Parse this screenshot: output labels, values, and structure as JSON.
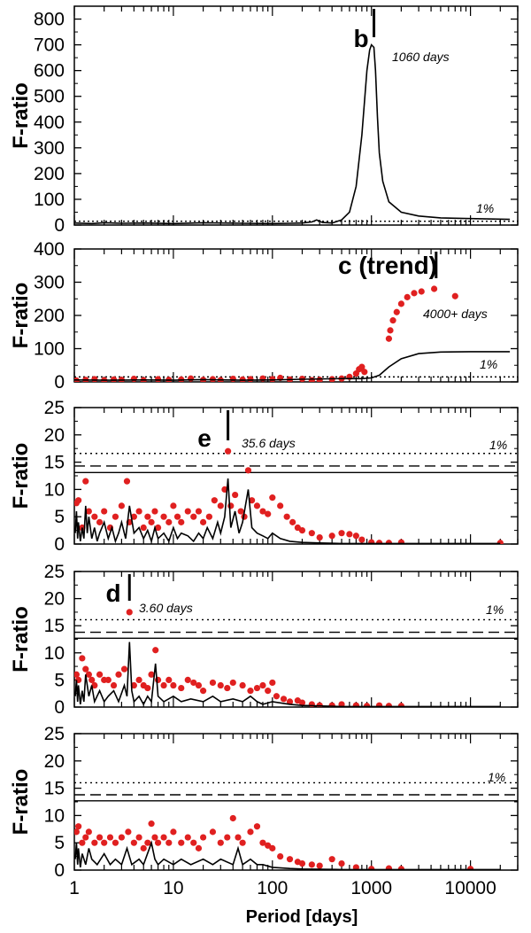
{
  "chart_data": [
    {
      "type": "line",
      "ylabel": "F-ratio",
      "xscale": "log",
      "xlim": [
        1,
        30000
      ],
      "ylim": [
        0,
        850
      ],
      "yticks": [
        "0",
        "100",
        "200",
        "300",
        "400",
        "500",
        "600",
        "700",
        "800"
      ],
      "yticks_values": [
        0,
        100,
        200,
        300,
        400,
        500,
        600,
        700,
        800
      ],
      "planet_label": "b",
      "peak": {
        "period": 1060,
        "label": "1060 days"
      },
      "significance_label": "1%",
      "thresholds": {
        "one_percent": 15
      },
      "series": [
        {
          "color": "#000000",
          "style": "line",
          "x": [
            1,
            1.5,
            2,
            3,
            5,
            10,
            20,
            50,
            100,
            150,
            200,
            250,
            280,
            320,
            400,
            500,
            600,
            700,
            800,
            900,
            960,
            1000,
            1030,
            1060,
            1100,
            1150,
            1200,
            1300,
            1500,
            2000,
            3000,
            5000,
            10000,
            25000
          ],
          "y": [
            8,
            6,
            9,
            7,
            8,
            6,
            9,
            7,
            6,
            7,
            8,
            12,
            20,
            10,
            8,
            20,
            50,
            150,
            350,
            600,
            680,
            700,
            695,
            690,
            600,
            420,
            280,
            170,
            90,
            50,
            35,
            28,
            25,
            22
          ]
        }
      ]
    },
    {
      "type": "line",
      "ylabel": "F-ratio",
      "xscale": "log",
      "xlim": [
        1,
        30000
      ],
      "ylim": [
        0,
        400
      ],
      "yticks": [
        "0",
        "100",
        "200",
        "300",
        "400"
      ],
      "yticks_values": [
        0,
        100,
        200,
        300,
        400
      ],
      "planet_label": "c (trend)",
      "peak": {
        "period": 4500,
        "label": "4000+ days"
      },
      "significance_label": "1%",
      "thresholds": {
        "one_percent": 15
      },
      "series": [
        {
          "color": "#000000",
          "style": "line",
          "x": [
            1,
            2,
            5,
            10,
            20,
            50,
            100,
            200,
            500,
            800,
            1000,
            1200,
            1500,
            2000,
            3000,
            5000,
            10000,
            25000
          ],
          "y": [
            6,
            5,
            6,
            5,
            7,
            5,
            6,
            8,
            10,
            10,
            12,
            20,
            45,
            70,
            85,
            90,
            91,
            91
          ]
        },
        {
          "color": "#e02020",
          "style": "points",
          "x": [
            1.05,
            1.3,
            1.6,
            2,
            2.5,
            3,
            4,
            5,
            7,
            9,
            12,
            15,
            20,
            25,
            30,
            40,
            50,
            60,
            80,
            100,
            120,
            150,
            200,
            250,
            300,
            400,
            500,
            600,
            700,
            750,
            800,
            850,
            1500,
            1550,
            1650,
            1800,
            2000,
            2300,
            2700,
            3200,
            4300,
            7000
          ],
          "y": [
            4,
            6,
            8,
            5,
            7,
            6,
            9,
            5,
            8,
            6,
            7,
            10,
            6,
            8,
            5,
            9,
            7,
            8,
            10,
            8,
            12,
            7,
            9,
            5,
            6,
            8,
            10,
            15,
            25,
            38,
            45,
            30,
            130,
            155,
            185,
            210,
            235,
            255,
            267,
            272,
            280,
            258
          ]
        }
      ]
    },
    {
      "type": "line",
      "ylabel": "F-ratio",
      "xscale": "log",
      "xlim": [
        1,
        30000
      ],
      "ylim": [
        0,
        25
      ],
      "yticks": [
        "0",
        "5",
        "10",
        "15",
        "20",
        "25"
      ],
      "yticks_values": [
        0,
        5,
        10,
        15,
        20,
        25
      ],
      "planet_label": "e",
      "peak": {
        "period": 35.6,
        "label": "35.6 days"
      },
      "significance_label": "1%",
      "thresholds": {
        "dotted": 16.6,
        "dashed": 14.3,
        "solid": 13.1
      },
      "series": [
        {
          "color": "#e02020",
          "style": "points",
          "x": [
            1.05,
            1.1,
            1.2,
            1.3,
            1.4,
            1.6,
            1.8,
            2,
            2.3,
            2.6,
            3,
            3.4,
            3.6,
            4,
            4.5,
            5,
            5.5,
            6,
            6.5,
            7,
            8,
            9,
            10,
            11,
            12,
            14,
            16,
            18,
            20,
            23,
            26,
            30,
            33,
            35.6,
            38,
            42,
            48,
            52,
            57,
            62,
            70,
            80,
            90,
            100,
            120,
            140,
            160,
            180,
            200,
            250,
            300,
            400,
            500,
            600,
            700,
            800,
            1000,
            1200,
            1500,
            2000,
            20000
          ],
          "y": [
            7.5,
            8,
            3,
            11.5,
            6,
            5,
            4,
            6,
            3,
            5,
            7,
            11.5,
            4,
            5,
            6,
            3,
            5,
            4,
            6,
            3,
            5,
            4,
            7,
            5,
            4,
            6,
            5,
            6,
            4,
            5,
            8,
            7,
            10,
            17,
            7,
            9,
            6,
            5,
            13.5,
            8,
            7,
            6,
            5.5,
            8.5,
            7,
            5,
            4,
            3,
            2.5,
            2,
            1.2,
            1.5,
            2,
            1.8,
            1.5,
            0.8,
            0.3,
            0.2,
            0.2,
            0.3,
            0.2
          ]
        },
        {
          "color": "#000000",
          "style": "line",
          "x": [
            1.02,
            1.05,
            1.08,
            1.1,
            1.15,
            1.2,
            1.25,
            1.3,
            1.35,
            1.4,
            1.5,
            1.6,
            1.7,
            1.8,
            2,
            2.2,
            2.4,
            2.6,
            2.8,
            3,
            3.3,
            3.6,
            4,
            4.5,
            5,
            5.5,
            6,
            6.5,
            7,
            8,
            9,
            10,
            11,
            12,
            14,
            16,
            18,
            20,
            22,
            25,
            28,
            30,
            33,
            35.6,
            38,
            42,
            46,
            50,
            57,
            62,
            70,
            80,
            90,
            100,
            120,
            150,
            200,
            300,
            500,
            1000,
            2000,
            5000,
            20000
          ],
          "y": [
            2,
            6,
            1,
            4,
            0.5,
            3,
            1,
            7,
            2,
            5,
            1,
            3,
            0.5,
            2,
            4,
            1,
            3,
            0.5,
            2,
            4,
            1,
            7,
            2,
            3,
            1,
            2.5,
            0.5,
            3,
            1,
            2,
            0.5,
            3,
            1,
            2,
            1.5,
            0.5,
            2,
            1,
            3,
            1,
            4,
            2,
            5,
            12,
            3,
            6,
            2,
            4,
            10,
            3,
            2,
            1.5,
            1,
            2,
            1,
            0.5,
            0.3,
            0.2,
            0.1,
            0.1,
            0.1,
            0.1,
            0.1
          ]
        }
      ]
    },
    {
      "type": "line",
      "ylabel": "F-ratio",
      "xscale": "log",
      "xlim": [
        1,
        30000
      ],
      "ylim": [
        0,
        25
      ],
      "yticks": [
        "0",
        "5",
        "10",
        "15",
        "20",
        "25"
      ],
      "yticks_values": [
        0,
        5,
        10,
        15,
        20,
        25
      ],
      "planet_label": "d",
      "peak": {
        "period": 3.6,
        "label": "3.60 days"
      },
      "significance_label": "1%",
      "thresholds": {
        "dotted": 16.1,
        "dashed": 13.8,
        "solid": 12.7
      },
      "series": [
        {
          "color": "#e02020",
          "style": "points",
          "x": [
            1.05,
            1.1,
            1.2,
            1.3,
            1.4,
            1.5,
            1.6,
            1.8,
            2,
            2.2,
            2.5,
            2.8,
            3.2,
            3.6,
            4,
            4.5,
            5,
            5.5,
            6,
            6.6,
            7,
            8,
            9,
            10,
            12,
            14,
            16,
            18,
            20,
            25,
            30,
            35,
            40,
            50,
            60,
            70,
            80,
            90,
            100,
            110,
            130,
            150,
            180,
            200,
            250,
            300,
            400,
            500,
            700,
            900,
            1200,
            1500,
            2000
          ],
          "y": [
            6,
            5,
            9,
            7,
            6,
            5,
            4,
            6,
            5,
            5,
            4,
            6,
            7,
            17.5,
            4,
            5,
            4,
            3.5,
            6,
            10.5,
            5,
            4,
            5,
            4,
            3.5,
            5,
            4.5,
            4,
            3,
            4.5,
            4,
            3.5,
            4.5,
            4,
            3,
            3.5,
            4,
            3,
            4.5,
            2,
            1.5,
            1,
            1.2,
            0.8,
            0.5,
            0.3,
            0.3,
            0.5,
            0.3,
            0.2,
            0.3,
            0.2,
            0.2
          ]
        },
        {
          "color": "#000000",
          "style": "line",
          "x": [
            1.02,
            1.05,
            1.08,
            1.1,
            1.15,
            1.2,
            1.25,
            1.3,
            1.4,
            1.5,
            1.6,
            1.8,
            2,
            2.2,
            2.5,
            2.8,
            3.2,
            3.4,
            3.6,
            3.8,
            4,
            4.5,
            5,
            5.5,
            6,
            6.6,
            7,
            8,
            10,
            12,
            15,
            20,
            25,
            30,
            40,
            50,
            60,
            70,
            80,
            100,
            150,
            200,
            500,
            1000,
            5000,
            20000
          ],
          "y": [
            2,
            5,
            1,
            4,
            0.5,
            3,
            1,
            6,
            2,
            4,
            1,
            3,
            1,
            2,
            3,
            1,
            4,
            2,
            12,
            3,
            1,
            2,
            0.5,
            2,
            1,
            8,
            2,
            1,
            2,
            1,
            1.5,
            1,
            2,
            1,
            1.5,
            1,
            2,
            1,
            0.5,
            1,
            0.5,
            0.3,
            0.1,
            0.1,
            0.1,
            0.1
          ]
        }
      ]
    },
    {
      "type": "line",
      "ylabel": "F-ratio",
      "xlabel": "Period [days]",
      "xscale": "log",
      "xlim": [
        1,
        30000
      ],
      "ylim": [
        0,
        25
      ],
      "yticks": [
        "0",
        "5",
        "10",
        "15",
        "20",
        "25"
      ],
      "yticks_values": [
        0,
        5,
        10,
        15,
        20,
        25
      ],
      "xticks": [
        "1",
        "10",
        "100",
        "1000",
        "10000"
      ],
      "xticks_values": [
        1,
        10,
        100,
        1000,
        10000
      ],
      "significance_label": "1%",
      "thresholds": {
        "dotted": 16.0,
        "dashed": 13.8,
        "solid": 12.7
      },
      "series": [
        {
          "color": "#e02020",
          "style": "points",
          "x": [
            1.05,
            1.1,
            1.2,
            1.3,
            1.4,
            1.6,
            1.8,
            2,
            2.3,
            2.6,
            3,
            3.5,
            4,
            4.5,
            5,
            5.5,
            6,
            6.5,
            7,
            8,
            9,
            10,
            12,
            14,
            16,
            18,
            20,
            25,
            30,
            35,
            40,
            45,
            50,
            60,
            70,
            80,
            90,
            100,
            120,
            150,
            180,
            200,
            250,
            300,
            400,
            500,
            700,
            1000,
            1500,
            2000,
            10000
          ],
          "y": [
            7,
            8,
            5,
            6,
            7,
            5,
            6,
            5,
            6,
            5,
            6,
            7,
            5,
            6,
            4,
            5,
            8.5,
            6,
            5,
            6,
            5,
            7,
            5,
            6,
            5,
            4,
            6,
            7,
            5,
            6,
            9.5,
            6,
            5,
            7,
            8,
            5,
            4.5,
            4,
            2.5,
            2,
            1.5,
            1.2,
            1,
            0.8,
            2,
            1.2,
            0.5,
            0.2,
            0.3,
            0.2,
            0.2
          ]
        },
        {
          "color": "#000000",
          "style": "line",
          "x": [
            1.02,
            1.05,
            1.08,
            1.1,
            1.15,
            1.2,
            1.3,
            1.4,
            1.5,
            1.7,
            2,
            2.3,
            2.6,
            3,
            3.4,
            3.8,
            4.5,
            5,
            6,
            6.5,
            7,
            8,
            10,
            12,
            15,
            20,
            25,
            30,
            40,
            45,
            50,
            60,
            70,
            80,
            100,
            150,
            200,
            500,
            1000,
            5000,
            20000
          ],
          "y": [
            2,
            5,
            1,
            4,
            0.5,
            3,
            1,
            4,
            2,
            1,
            3,
            1,
            2,
            1,
            4,
            1,
            2,
            1,
            5,
            2,
            1,
            2,
            1,
            2,
            1,
            2,
            1,
            2,
            1,
            4,
            1,
            2,
            1,
            1,
            0.5,
            0.3,
            0.2,
            0.1,
            0.1,
            0.1,
            0.1
          ]
        }
      ]
    }
  ]
}
